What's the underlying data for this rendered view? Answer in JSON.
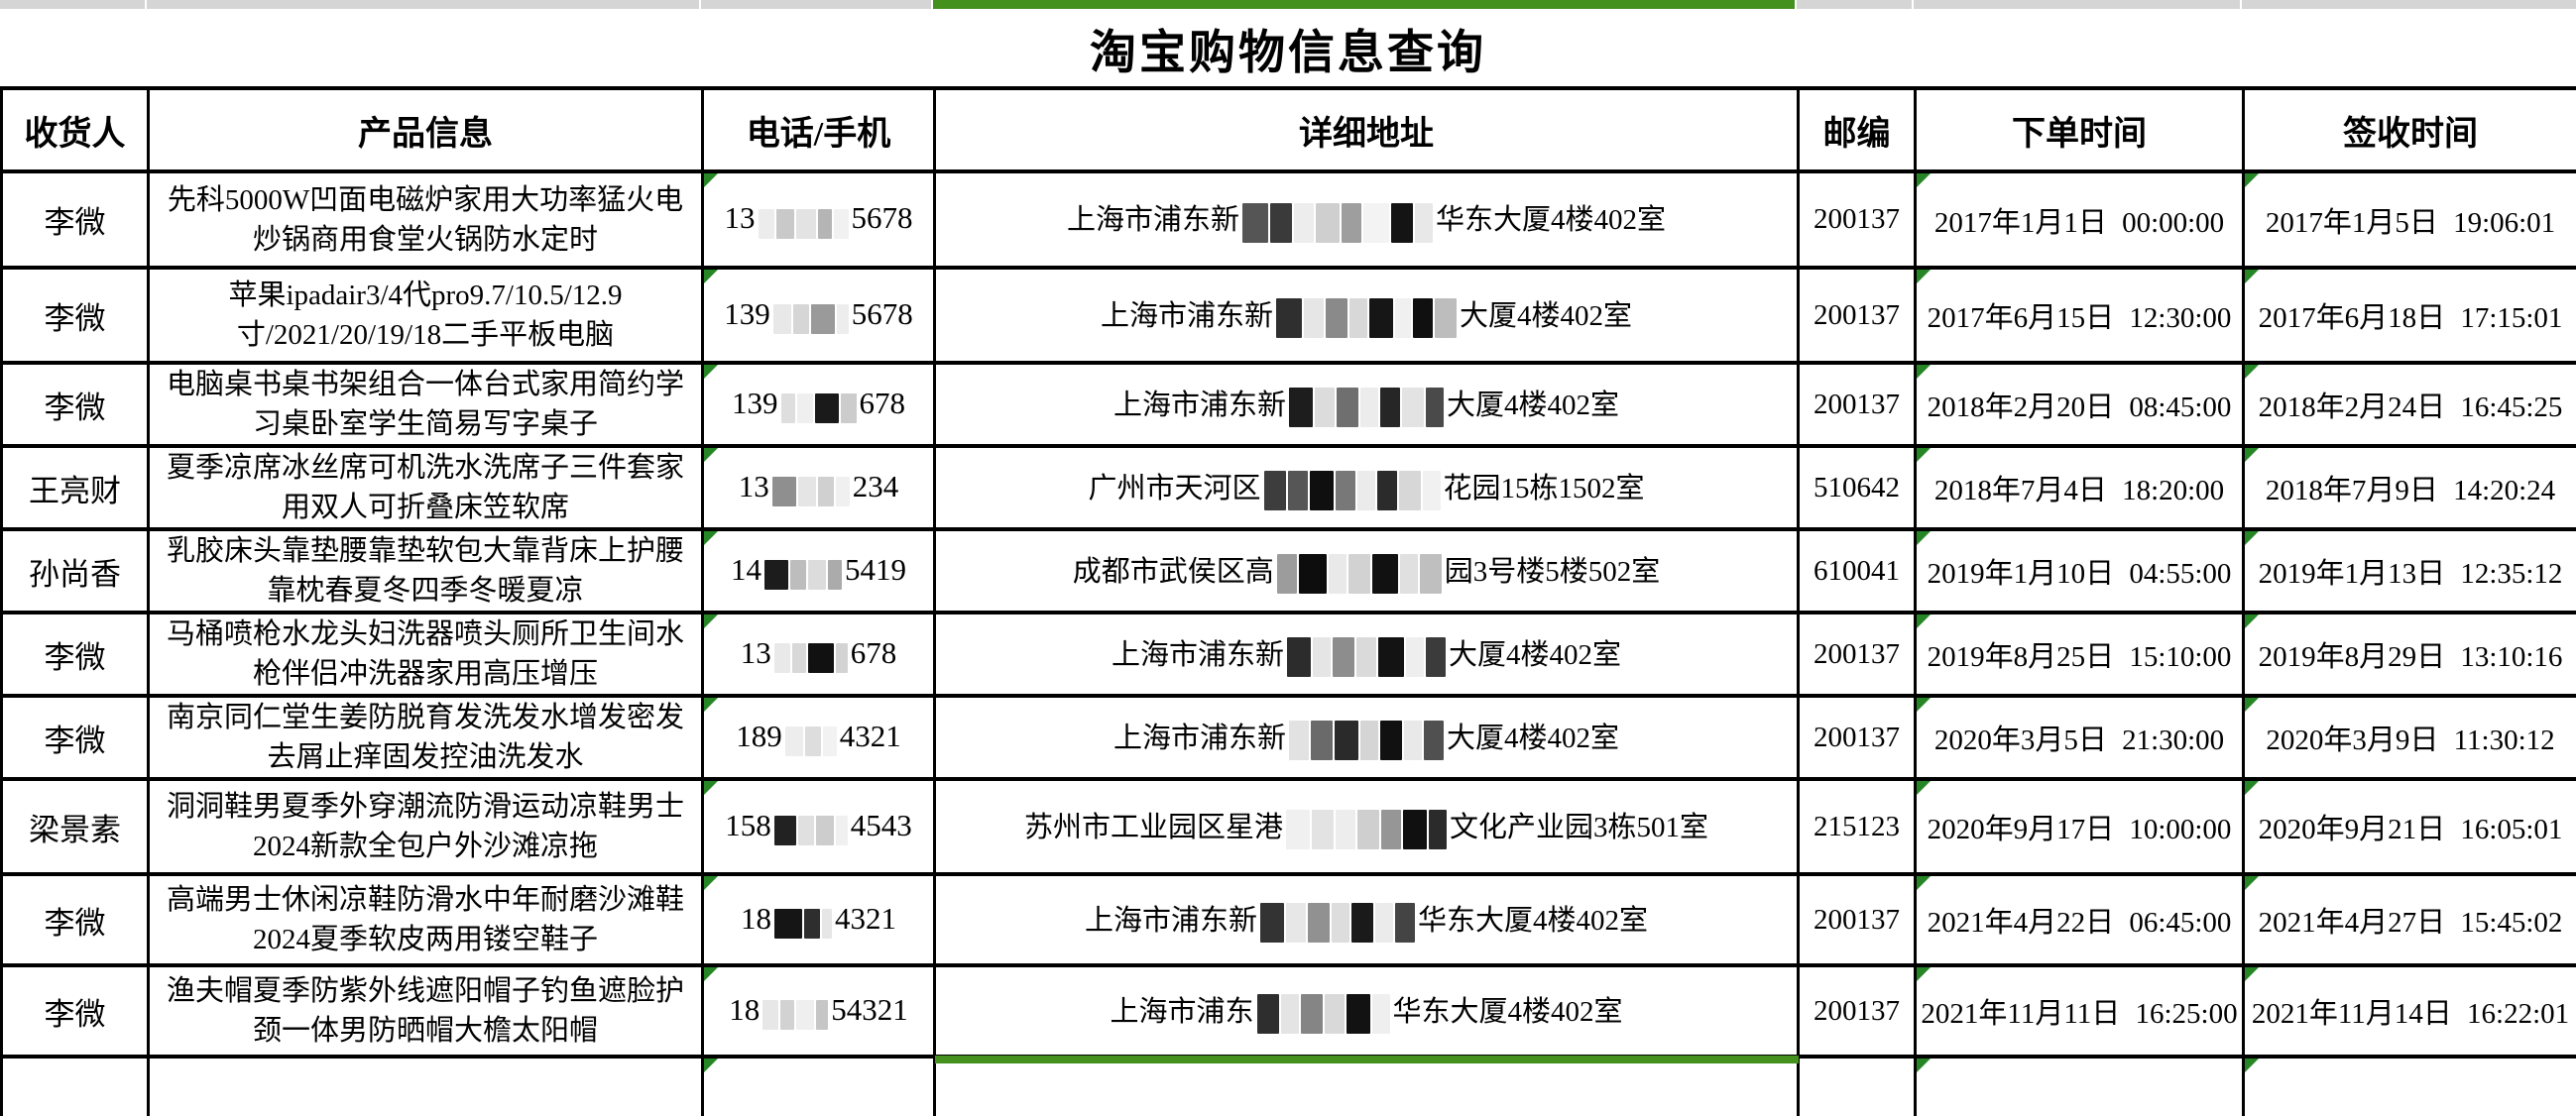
{
  "title": "淘宝购物信息查询",
  "columns": [
    "收货人",
    "产品信息",
    "电话/手机",
    "详细地址",
    "邮编",
    "下单时间",
    "签收时间"
  ],
  "colors": {
    "selection_green": "#44911e",
    "flag_triangle_green": "#268626",
    "strip_gray": "#d5d5d5",
    "grid_black": "#000000"
  },
  "rows": [
    {
      "recipient": "李微",
      "product": "先科5000W凹面电磁炉家用大功率猛火电炒锅商用食堂火锅防水定时",
      "phone_prefix": "13",
      "phone_suffix": "5678",
      "phone_mask": [
        [
          "#ececec",
          16
        ],
        [
          "#c9c9c9",
          18
        ],
        [
          "#e3e3e3",
          20
        ],
        [
          "#b5b5b5",
          14
        ],
        [
          "#f1f1f1",
          15
        ]
      ],
      "addr_prefix": "上海市浦东新",
      "addr_suffix": "华东大厦4楼402室",
      "addr_mask": [
        [
          "#555555",
          26
        ],
        [
          "#3a3a3a",
          22
        ],
        [
          "#ededed",
          20
        ],
        [
          "#cfcfcf",
          24
        ],
        [
          "#9e9e9e",
          20
        ],
        [
          "#f3f3f3",
          26
        ],
        [
          "#141414",
          22
        ],
        [
          "#e8e8e8",
          18
        ]
      ],
      "zip": "200137",
      "order_time": "2017年1月1日 00:00:00",
      "sign_time": "2017年1月5日 19:06:01"
    },
    {
      "recipient": "李微",
      "product": "苹果ipadair3/4代pro9.7/10.5/12.9寸/2021/20/19/18二手平板电脑",
      "phone_prefix": "139",
      "phone_suffix": "5678",
      "phone_mask": [
        [
          "#e8e8e8",
          18
        ],
        [
          "#d6d6d6",
          16
        ],
        [
          "#9a9a9a",
          24
        ],
        [
          "#ededed",
          12
        ]
      ],
      "addr_prefix": "上海市浦东新",
      "addr_suffix": "大厦4楼402室",
      "addr_mask": [
        [
          "#2f2f2f",
          26
        ],
        [
          "#e6e6e6",
          20
        ],
        [
          "#8a8a8a",
          22
        ],
        [
          "#d8d8d8",
          18
        ],
        [
          "#161616",
          24
        ],
        [
          "#f0f0f0",
          16
        ],
        [
          "#101010",
          20
        ],
        [
          "#bdbdbd",
          22
        ]
      ],
      "zip": "200137",
      "order_time": "2017年6月15日 12:30:00",
      "sign_time": "2017年6月18日 17:15:01"
    },
    {
      "recipient": "李微",
      "product": "电脑桌书桌书架组合一体台式家用简约学习桌卧室学生简易写字桌子",
      "phone_prefix": "139",
      "phone_suffix": "678",
      "phone_mask": [
        [
          "#dedede",
          14
        ],
        [
          "#efefef",
          16
        ],
        [
          "#1a1a1a",
          24
        ],
        [
          "#cccccc",
          16
        ]
      ],
      "addr_prefix": "上海市浦东新",
      "addr_suffix": "大厦4楼402室",
      "addr_mask": [
        [
          "#1d1d1d",
          24
        ],
        [
          "#dcdcdc",
          20
        ],
        [
          "#6f6f6f",
          22
        ],
        [
          "#ececec",
          18
        ],
        [
          "#262626",
          20
        ],
        [
          "#e3e3e3",
          22
        ],
        [
          "#4a4a4a",
          18
        ]
      ],
      "zip": "200137",
      "order_time": "2018年2月20日 08:45:00",
      "sign_time": "2018年2月24日 16:45:25"
    },
    {
      "recipient": "王亮财",
      "product": "夏季凉席冰丝席可机洗水洗席子三件套家用双人可折叠床笠软席",
      "phone_prefix": "13",
      "phone_suffix": "234",
      "phone_mask": [
        [
          "#8f8f8f",
          24
        ],
        [
          "#e5e5e5",
          18
        ],
        [
          "#d0d0d0",
          16
        ],
        [
          "#f0f0f0",
          14
        ]
      ],
      "addr_prefix": "广州市天河区",
      "addr_suffix": "花园15栋1502室",
      "addr_mask": [
        [
          "#3d3d3d",
          22
        ],
        [
          "#565656",
          20
        ],
        [
          "#0f0f0f",
          24
        ],
        [
          "#787878",
          20
        ],
        [
          "#ebebeb",
          18
        ],
        [
          "#2b2b2b",
          20
        ],
        [
          "#d7d7d7",
          22
        ],
        [
          "#f1f1f1",
          18
        ]
      ],
      "zip": "510642",
      "order_time": "2018年7月4日 18:20:00",
      "sign_time": "2018年7月9日 14:20:24"
    },
    {
      "recipient": "孙尚香",
      "product": "乳胶床头靠垫腰靠垫软包大靠背床上护腰靠枕春夏冬四季冬暖夏凉",
      "phone_prefix": "14",
      "phone_suffix": "5419",
      "phone_mask": [
        [
          "#1c1c1c",
          24
        ],
        [
          "#bdbdbd",
          16
        ],
        [
          "#dcdcdc",
          18
        ],
        [
          "#ababab",
          14
        ]
      ],
      "addr_prefix": "成都市武侯区高",
      "addr_suffix": "园3号楼5楼502室",
      "addr_mask": [
        [
          "#9c9c9c",
          20
        ],
        [
          "#0d0d0d",
          28
        ],
        [
          "#e9e9e9",
          18
        ],
        [
          "#d2d2d2",
          22
        ],
        [
          "#111111",
          26
        ],
        [
          "#e0e0e0",
          18
        ],
        [
          "#bfbfbf",
          22
        ]
      ],
      "zip": "610041",
      "order_time": "2019年1月10日 04:55:00",
      "sign_time": "2019年1月13日 12:35:12"
    },
    {
      "recipient": "李微",
      "product": "马桶喷枪水龙头妇洗器喷头厕所卫生间水枪伴侣冲洗器家用高压增压",
      "phone_prefix": "13",
      "phone_suffix": "678",
      "phone_mask": [
        [
          "#e9e9e9",
          16
        ],
        [
          "#d8d8d8",
          14
        ],
        [
          "#111111",
          26
        ],
        [
          "#d3d3d3",
          12
        ]
      ],
      "addr_prefix": "上海市浦东新",
      "addr_suffix": "大厦4楼402室",
      "addr_mask": [
        [
          "#2c2c2c",
          24
        ],
        [
          "#e5e5e5",
          18
        ],
        [
          "#8d8d8d",
          22
        ],
        [
          "#dadada",
          20
        ],
        [
          "#131313",
          26
        ],
        [
          "#eeeeee",
          18
        ],
        [
          "#3b3b3b",
          20
        ]
      ],
      "zip": "200137",
      "order_time": "2019年8月25日 15:10:00",
      "sign_time": "2019年8月29日 13:10:16"
    },
    {
      "recipient": "李微",
      "product": "南京同仁堂生姜防脱育发洗发水增发密发去屑止痒固发控油洗发水",
      "phone_prefix": "189",
      "phone_suffix": "4321",
      "phone_mask": [
        [
          "#ededed",
          18
        ],
        [
          "#dddddd",
          16
        ],
        [
          "#f2f2f2",
          14
        ]
      ],
      "addr_prefix": "上海市浦东新",
      "addr_suffix": "大厦4楼402室",
      "addr_mask": [
        [
          "#e2e2e2",
          20
        ],
        [
          "#6a6a6a",
          22
        ],
        [
          "#2a2a2a",
          24
        ],
        [
          "#d5d5d5",
          18
        ],
        [
          "#111111",
          22
        ],
        [
          "#e9e9e9",
          18
        ],
        [
          "#505050",
          20
        ]
      ],
      "zip": "200137",
      "order_time": "2020年3月5日 21:30:00",
      "sign_time": "2020年3月9日 11:30:12"
    },
    {
      "recipient": "梁景素",
      "product": "洞洞鞋男夏季外穿潮流防滑运动凉鞋男士2024新款全包户外沙滩凉拖",
      "phone_prefix": "158",
      "phone_suffix": "4543",
      "phone_mask": [
        [
          "#222222",
          22
        ],
        [
          "#e0e0e0",
          16
        ],
        [
          "#cdcdcd",
          18
        ],
        [
          "#f0f0f0",
          12
        ]
      ],
      "addr_prefix": "苏州市工业园区星港",
      "addr_suffix": "文化产业园3栋501室",
      "addr_mask": [
        [
          "#f0f0f0",
          24
        ],
        [
          "#e3e3e3",
          22
        ],
        [
          "#ededed",
          20
        ],
        [
          "#cfcfcf",
          22
        ],
        [
          "#969696",
          20
        ],
        [
          "#101010",
          24
        ],
        [
          "#2b2b2b",
          18
        ]
      ],
      "zip": "215123",
      "order_time": "2020年9月17日 10:00:00",
      "sign_time": "2020年9月21日 16:05:01"
    },
    {
      "recipient": "李微",
      "product": "高端男士休闲凉鞋防滑水中年耐磨沙滩鞋2024夏季软皮两用镂空鞋子",
      "phone_prefix": "18",
      "phone_suffix": "4321",
      "phone_mask": [
        [
          "#151515",
          28
        ],
        [
          "#2e2e2e",
          16
        ],
        [
          "#e6e6e6",
          10
        ]
      ],
      "addr_prefix": "上海市浦东新",
      "addr_suffix": "华东大厦4楼402室",
      "addr_mask": [
        [
          "#333333",
          24
        ],
        [
          "#e7e7e7",
          20
        ],
        [
          "#919191",
          22
        ],
        [
          "#dddddd",
          18
        ],
        [
          "#1a1a1a",
          22
        ],
        [
          "#ebebeb",
          18
        ],
        [
          "#444444",
          20
        ]
      ],
      "zip": "200137",
      "order_time": "2021年4月22日 06:45:00",
      "sign_time": "2021年4月27日 15:45:02"
    },
    {
      "recipient": "李微",
      "product": "渔夫帽夏季防紫外线遮阳帽子钓鱼遮脸护颈一体男防晒帽大檐太阳帽",
      "phone_prefix": "18",
      "phone_suffix": "54321",
      "phone_mask": [
        [
          "#e7e7e7",
          16
        ],
        [
          "#d2d2d2",
          14
        ],
        [
          "#efefef",
          18
        ],
        [
          "#c6c6c6",
          12
        ]
      ],
      "addr_prefix": "上海市浦东",
      "addr_suffix": "华东大厦4楼402室",
      "addr_mask": [
        [
          "#2e2e2e",
          22
        ],
        [
          "#e4e4e4",
          18
        ],
        [
          "#858585",
          22
        ],
        [
          "#d9d9d9",
          20
        ],
        [
          "#121212",
          24
        ],
        [
          "#efefef",
          18
        ]
      ],
      "zip": "200137",
      "order_time": "2021年11月11日 16:25:00",
      "sign_time": "2021年11月14日 16:22:01"
    }
  ],
  "partial_row": {
    "recipient": "",
    "product": "",
    "phone_prefix": "",
    "phone_suffix": "",
    "phone_mask": [],
    "addr_prefix": "",
    "addr_suffix": "",
    "addr_mask": [],
    "zip": "",
    "order_time": "",
    "sign_time": ""
  }
}
